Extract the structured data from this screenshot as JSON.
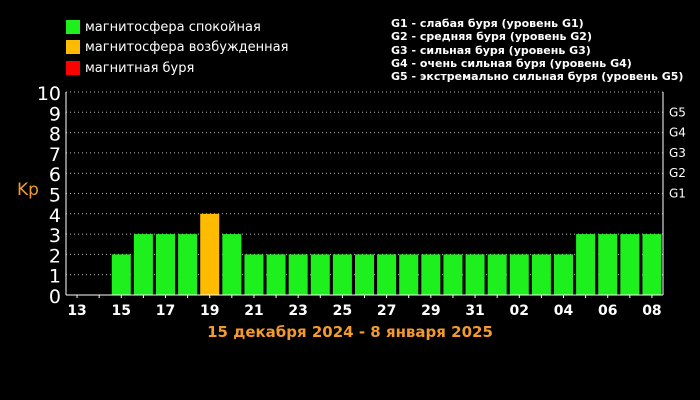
{
  "legend": [
    {
      "label": "магнитосфера спокойная",
      "color": "#1ef01e"
    },
    {
      "label": "магнитосфера возбужденная",
      "color": "#ffbb00"
    },
    {
      "label": "магнитная буря",
      "color": "#ff0000"
    }
  ],
  "storm_levels": [
    "G1 - слабая буря (уровень G1)",
    "G2 - средняя буря (уровень G2)",
    "G3 - сильная буря (уровень G3)",
    "G4 - очень сильная буря (уровень G4)",
    "G5 - экстремально сильная буря (уровень G5)"
  ],
  "date_range": "15 декабря 2024 - 8 января 2025",
  "chart_data": {
    "type": "bar",
    "ylabel": "Kp",
    "ylim": [
      0,
      10
    ],
    "yticks": [
      "0",
      "1",
      "2",
      "3",
      "4",
      "5",
      "6",
      "7",
      "8",
      "9",
      "10"
    ],
    "right_ticks": [
      {
        "label": "G1",
        "value": 5
      },
      {
        "label": "G2",
        "value": 6
      },
      {
        "label": "G3",
        "value": 7
      },
      {
        "label": "G4",
        "value": 8
      },
      {
        "label": "G5",
        "value": 9
      }
    ],
    "categories": [
      "13",
      "14",
      "15",
      "16",
      "17",
      "18",
      "19",
      "20",
      "21",
      "22",
      "23",
      "24",
      "25",
      "26",
      "27",
      "28",
      "29",
      "30",
      "31",
      "01",
      "02",
      "03",
      "04",
      "05",
      "06",
      "07",
      "08"
    ],
    "xtick_labels": [
      "13",
      "15",
      "17",
      "19",
      "21",
      "23",
      "25",
      "27",
      "29",
      "31",
      "02",
      "04",
      "06",
      "08"
    ],
    "values": [
      0,
      0,
      2,
      3,
      3,
      3,
      4,
      3,
      2,
      2,
      2,
      2,
      2,
      2,
      2,
      2,
      2,
      2,
      2,
      2,
      2,
      2,
      2,
      3,
      3,
      3,
      3
    ],
    "colors": {
      "quiet": "#1ef01e",
      "active": "#ffbb00",
      "storm": "#ff0000"
    },
    "grid": true
  }
}
